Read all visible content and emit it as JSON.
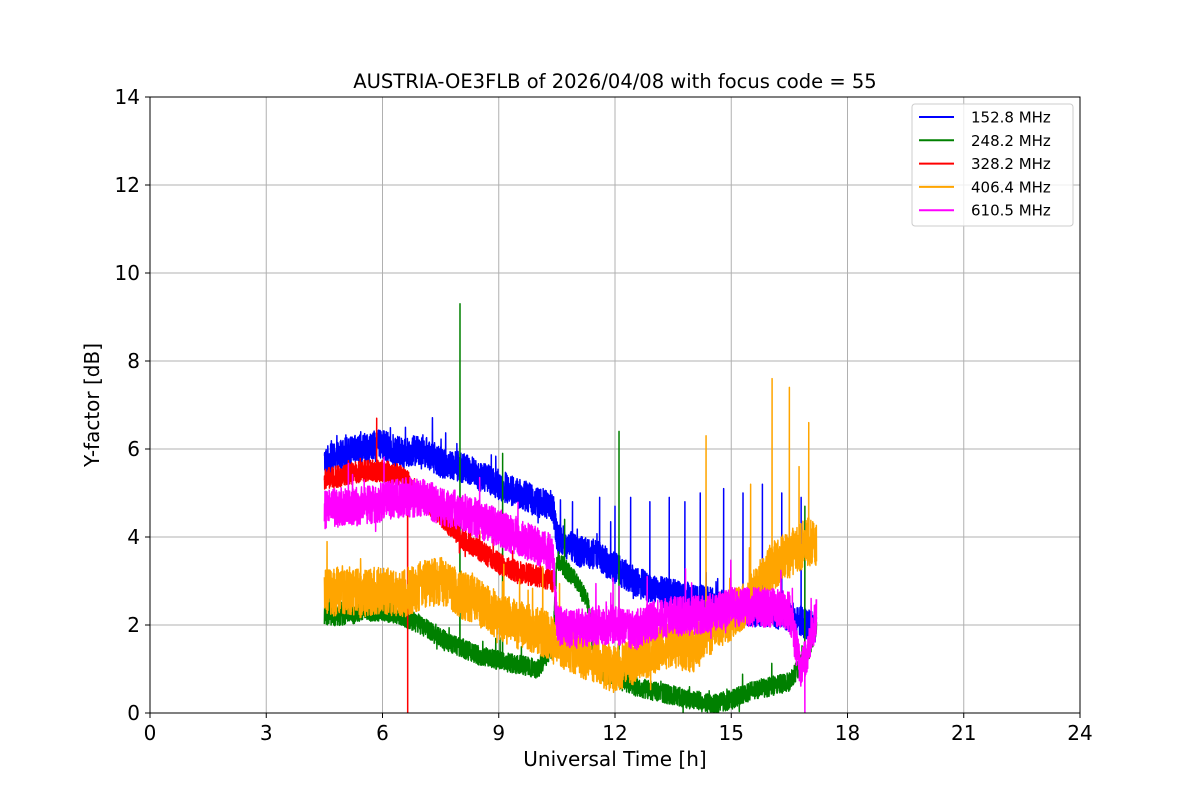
{
  "chart_data": {
    "type": "line",
    "title": "AUSTRIA-OE3FLB of 2026/04/08 with focus code = 55",
    "xlabel": "Universal Time [h]",
    "ylabel": "Y-factor [dB]",
    "xlim": [
      0,
      24
    ],
    "ylim": [
      0,
      14
    ],
    "xticks": [
      0,
      3,
      6,
      9,
      12,
      15,
      18,
      21,
      24
    ],
    "yticks": [
      0,
      2,
      4,
      6,
      8,
      10,
      12,
      14
    ],
    "grid": true,
    "legend_position": "top-right",
    "series": [
      {
        "name": "152.8 MHz",
        "color": "#0000ff",
        "points": [
          [
            4.5,
            5.7
          ],
          [
            5.0,
            5.9
          ],
          [
            5.5,
            6.0
          ],
          [
            6.0,
            6.1
          ],
          [
            6.5,
            5.9
          ],
          [
            7.0,
            6.0
          ],
          [
            7.5,
            5.7
          ],
          [
            8.0,
            5.6
          ],
          [
            8.5,
            5.4
          ],
          [
            9.0,
            5.2
          ],
          [
            9.5,
            5.0
          ],
          [
            10.0,
            4.8
          ],
          [
            10.4,
            4.7
          ],
          [
            10.5,
            4.0
          ],
          [
            11.0,
            3.7
          ],
          [
            11.5,
            3.6
          ],
          [
            12.0,
            3.3
          ],
          [
            12.5,
            3.0
          ],
          [
            13.0,
            2.8
          ],
          [
            13.5,
            2.7
          ],
          [
            14.0,
            2.6
          ],
          [
            14.5,
            2.5
          ],
          [
            15.0,
            2.4
          ],
          [
            15.5,
            2.3
          ],
          [
            16.0,
            2.3
          ],
          [
            16.5,
            2.2
          ],
          [
            17.0,
            2.0
          ],
          [
            17.2,
            1.9
          ]
        ],
        "spikes": [
          [
            10.9,
            4.8
          ],
          [
            11.6,
            4.9
          ],
          [
            12.0,
            4.7
          ],
          [
            12.4,
            4.9
          ],
          [
            12.9,
            4.8
          ],
          [
            13.4,
            4.9
          ],
          [
            13.8,
            4.8
          ],
          [
            14.2,
            5.0
          ],
          [
            14.8,
            5.1
          ],
          [
            15.3,
            5.0
          ],
          [
            15.8,
            5.2
          ],
          [
            16.3,
            5.0
          ],
          [
            16.8,
            4.9
          ]
        ]
      },
      {
        "name": "248.2 MHz",
        "color": "#008000",
        "points": [
          [
            4.5,
            2.2
          ],
          [
            5.0,
            2.2
          ],
          [
            5.5,
            2.3
          ],
          [
            6.0,
            2.3
          ],
          [
            6.5,
            2.2
          ],
          [
            7.0,
            2.0
          ],
          [
            7.5,
            1.7
          ],
          [
            8.0,
            1.5
          ],
          [
            8.5,
            1.3
          ],
          [
            9.0,
            1.2
          ],
          [
            9.5,
            1.1
          ],
          [
            10.0,
            1.0
          ],
          [
            10.4,
            1.5
          ],
          [
            10.5,
            3.5
          ],
          [
            11.0,
            3.0
          ],
          [
            11.3,
            2.5
          ],
          [
            11.5,
            1.0
          ],
          [
            12.0,
            0.8
          ],
          [
            12.5,
            0.6
          ],
          [
            13.0,
            0.5
          ],
          [
            13.5,
            0.4
          ],
          [
            14.0,
            0.3
          ],
          [
            14.5,
            0.2
          ],
          [
            15.0,
            0.3
          ],
          [
            15.5,
            0.5
          ],
          [
            16.0,
            0.6
          ],
          [
            16.5,
            0.7
          ],
          [
            17.0,
            1.4
          ],
          [
            17.2,
            2.0
          ]
        ],
        "spikes": [
          [
            8.0,
            9.3
          ],
          [
            9.1,
            5.9
          ],
          [
            12.1,
            6.4
          ],
          [
            10.7,
            4.4
          ],
          [
            16.9,
            4.7
          ]
        ]
      },
      {
        "name": "328.2 MHz",
        "color": "#ff0000",
        "points": [
          [
            4.5,
            5.3
          ],
          [
            5.0,
            5.4
          ],
          [
            5.5,
            5.5
          ],
          [
            6.0,
            5.5
          ],
          [
            6.5,
            5.4
          ],
          [
            7.0,
            4.9
          ],
          [
            7.5,
            4.5
          ],
          [
            8.0,
            4.0
          ],
          [
            8.5,
            3.7
          ],
          [
            9.0,
            3.4
          ],
          [
            9.5,
            3.2
          ],
          [
            10.0,
            3.1
          ],
          [
            10.4,
            3.0
          ]
        ],
        "spikes": [
          [
            5.85,
            6.7
          ],
          [
            6.65,
            0.0
          ]
        ]
      },
      {
        "name": "406.4 MHz",
        "color": "#ffa500",
        "points": [
          [
            4.5,
            2.7
          ],
          [
            5.0,
            2.8
          ],
          [
            5.5,
            2.7
          ],
          [
            6.0,
            2.8
          ],
          [
            6.5,
            2.7
          ],
          [
            7.0,
            2.9
          ],
          [
            7.5,
            3.0
          ],
          [
            8.0,
            2.7
          ],
          [
            8.5,
            2.5
          ],
          [
            9.0,
            2.2
          ],
          [
            9.5,
            2.0
          ],
          [
            10.0,
            1.9
          ],
          [
            10.5,
            1.6
          ],
          [
            11.0,
            1.4
          ],
          [
            11.5,
            1.2
          ],
          [
            12.0,
            1.0
          ],
          [
            12.5,
            1.2
          ],
          [
            13.0,
            1.4
          ],
          [
            13.5,
            1.6
          ],
          [
            14.0,
            1.4
          ],
          [
            14.5,
            1.9
          ],
          [
            15.0,
            2.2
          ],
          [
            15.5,
            2.6
          ],
          [
            16.0,
            3.3
          ],
          [
            16.5,
            3.6
          ],
          [
            17.0,
            3.9
          ],
          [
            17.2,
            3.8
          ]
        ],
        "spikes": [
          [
            14.35,
            6.3
          ],
          [
            15.5,
            5.2
          ],
          [
            16.05,
            7.6
          ],
          [
            16.5,
            7.4
          ],
          [
            16.75,
            5.6
          ],
          [
            17.0,
            6.6
          ]
        ]
      },
      {
        "name": "610.5 MHz",
        "color": "#ff00ff",
        "points": [
          [
            4.5,
            4.6
          ],
          [
            5.0,
            4.7
          ],
          [
            5.5,
            4.7
          ],
          [
            6.0,
            4.8
          ],
          [
            6.5,
            4.9
          ],
          [
            7.0,
            4.9
          ],
          [
            7.5,
            4.7
          ],
          [
            8.0,
            4.6
          ],
          [
            8.5,
            4.4
          ],
          [
            9.0,
            4.2
          ],
          [
            9.5,
            4.0
          ],
          [
            10.0,
            3.8
          ],
          [
            10.4,
            3.6
          ],
          [
            10.5,
            2.0
          ],
          [
            11.0,
            1.9
          ],
          [
            11.5,
            2.0
          ],
          [
            12.0,
            2.0
          ],
          [
            12.5,
            1.9
          ],
          [
            13.0,
            2.1
          ],
          [
            13.5,
            2.2
          ],
          [
            14.0,
            2.2
          ],
          [
            14.5,
            2.3
          ],
          [
            15.0,
            2.4
          ],
          [
            15.5,
            2.4
          ],
          [
            16.0,
            2.4
          ],
          [
            16.5,
            2.3
          ],
          [
            16.8,
            1.0
          ],
          [
            17.0,
            1.5
          ],
          [
            17.2,
            2.2
          ]
        ],
        "spikes": [
          [
            16.9,
            0.0
          ]
        ]
      }
    ]
  }
}
